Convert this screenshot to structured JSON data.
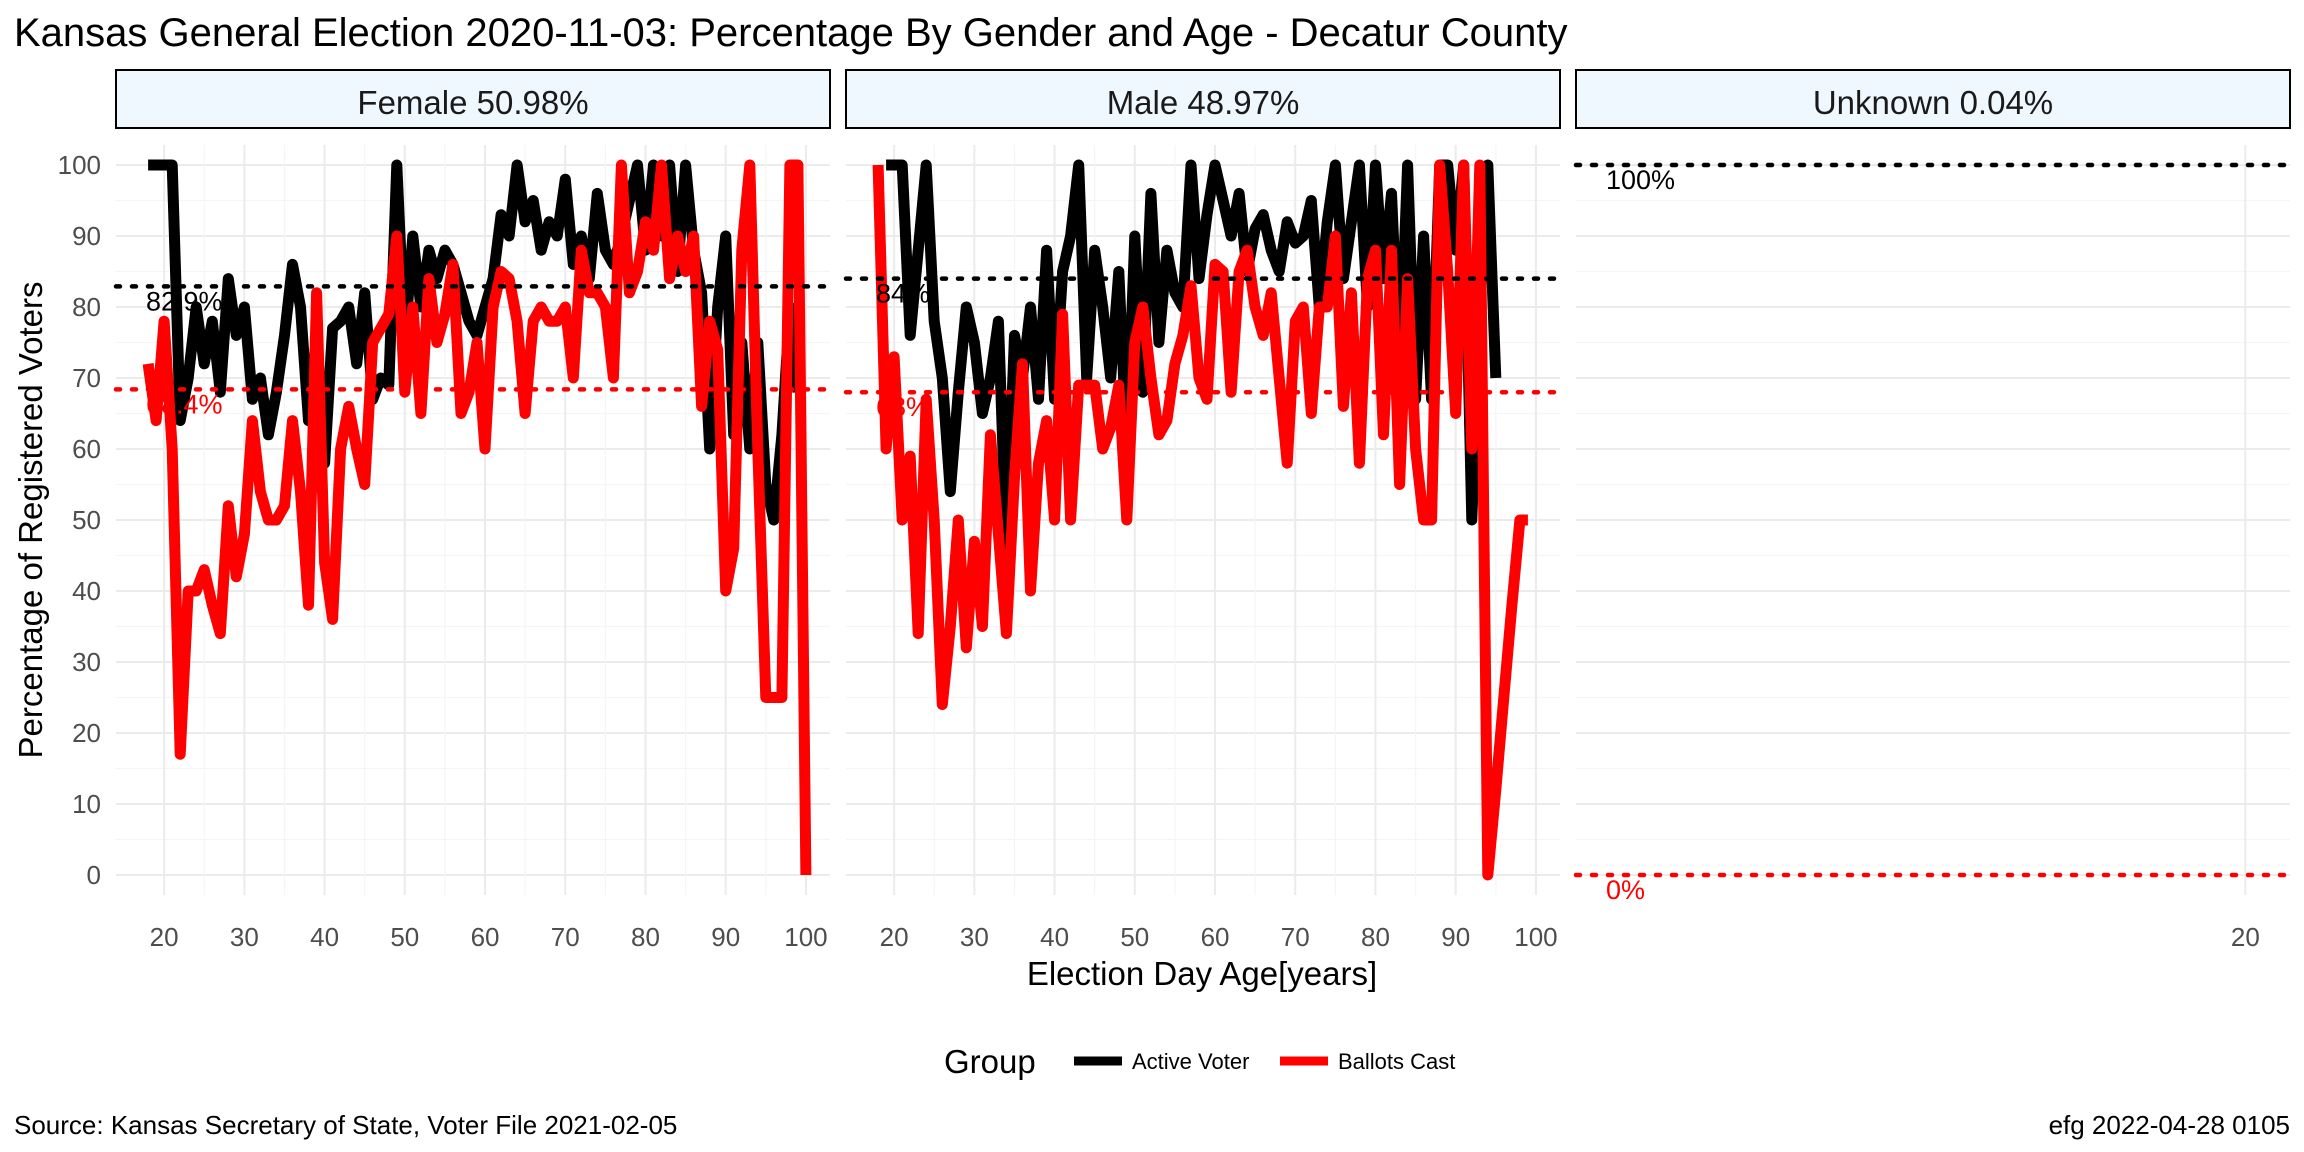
{
  "chart_data": {
    "type": "line",
    "title": "Kansas General Election 2020-11-03:  Percentage By Gender and Age - Decatur County",
    "xlabel": "Election Day Age[years]",
    "ylabel": "Percentage of Registered Voters",
    "caption_left": "Source:  Kansas Secretary of State, Voter File  2021-02-05",
    "caption_right": "efg 2022-04-28 0105",
    "legend": {
      "title": "Group",
      "position": "bottom",
      "entries": [
        {
          "label": "Active Voter",
          "color": "#000000"
        },
        {
          "label": "Ballots Cast",
          "color": "#ff0000"
        }
      ]
    },
    "ylim": [
      0,
      100
    ],
    "y_ticks": [
      0,
      10,
      20,
      30,
      40,
      50,
      60,
      70,
      80,
      90,
      100
    ],
    "grid": true,
    "panels": [
      {
        "label": "Female 50.98%",
        "xlim": [
          14,
          103
        ],
        "x_ticks": [
          20,
          30,
          40,
          50,
          60,
          70,
          80,
          90,
          100
        ],
        "ref_lines": [
          {
            "value": 82.9,
            "label": "82.9%",
            "color": "#000000"
          },
          {
            "value": 68.4,
            "label": "68.4%",
            "color": "#ff0000"
          }
        ],
        "series": [
          {
            "name": "Active Voter",
            "color": "#000000",
            "x": [
              18,
              19,
              20,
              21,
              22,
              23,
              24,
              25,
              26,
              27,
              28,
              29,
              30,
              31,
              32,
              33,
              34,
              35,
              36,
              37,
              38,
              39,
              40,
              41,
              42,
              43,
              44,
              45,
              46,
              47,
              48,
              49,
              50,
              51,
              52,
              53,
              54,
              55,
              56,
              57,
              58,
              59,
              60,
              61,
              62,
              63,
              64,
              65,
              66,
              67,
              68,
              69,
              70,
              71,
              72,
              73,
              74,
              75,
              76,
              77,
              78,
              79,
              80,
              81,
              82,
              83,
              84,
              85,
              86,
              87,
              88,
              89,
              90,
              91,
              92,
              93,
              94,
              95,
              96,
              97,
              98,
              99
            ],
            "y": [
              100,
              100,
              100,
              100,
              64,
              70,
              80,
              72,
              78,
              68,
              84,
              76,
              80,
              67,
              70,
              62,
              68,
              76,
              86,
              80,
              64,
              76,
              58,
              77,
              78,
              80,
              72,
              82,
              67,
              70,
              69,
              100,
              75,
              90,
              80,
              88,
              84,
              88,
              86,
              82,
              78,
              76,
              80,
              84,
              93,
              90,
              100,
              92,
              95,
              88,
              92,
              90,
              98,
              86,
              90,
              84,
              96,
              88,
              86,
              90,
              95,
              100,
              88,
              100,
              90,
              100,
              85,
              100,
              88,
              82,
              60,
              80,
              90,
              62,
              75,
              60,
              75,
              55,
              50,
              62,
              80,
              68
            ]
          },
          {
            "name": "Ballots Cast",
            "color": "#ff0000",
            "x": [
              18,
              19,
              20,
              21,
              22,
              23,
              24,
              25,
              26,
              27,
              28,
              29,
              30,
              31,
              32,
              33,
              34,
              35,
              36,
              37,
              38,
              39,
              40,
              41,
              42,
              43,
              44,
              45,
              46,
              47,
              48,
              49,
              50,
              51,
              52,
              53,
              54,
              55,
              56,
              57,
              58,
              59,
              60,
              61,
              62,
              63,
              64,
              65,
              66,
              67,
              68,
              69,
              70,
              71,
              72,
              73,
              74,
              75,
              76,
              77,
              78,
              79,
              80,
              81,
              82,
              83,
              84,
              85,
              86,
              87,
              88,
              89,
              90,
              91,
              92,
              93,
              94,
              95,
              96,
              97,
              98,
              99,
              100
            ],
            "y": [
              72,
              64,
              78,
              60,
              17,
              40,
              40,
              43,
              38,
              34,
              52,
              42,
              48,
              64,
              54,
              50,
              50,
              52,
              64,
              54,
              38,
              82,
              44,
              36,
              60,
              66,
              60,
              55,
              75,
              77,
              79,
              90,
              68,
              80,
              65,
              84,
              75,
              79,
              86,
              65,
              68,
              75,
              60,
              80,
              85,
              84,
              78,
              65,
              78,
              80,
              78,
              78,
              80,
              70,
              88,
              82,
              82,
              80,
              70,
              100,
              82,
              85,
              92,
              88,
              100,
              84,
              90,
              85,
              90,
              66,
              78,
              74,
              40,
              46,
              88,
              100,
              60,
              25,
              25,
              25,
              100,
              100,
              0
            ]
          }
        ]
      },
      {
        "label": "Male 48.97%",
        "xlim": [
          14,
          103
        ],
        "x_ticks": [
          20,
          30,
          40,
          50,
          60,
          70,
          80,
          90,
          100
        ],
        "ref_lines": [
          {
            "value": 84,
            "label": "84%",
            "color": "#000000"
          },
          {
            "value": 68,
            "label": "68%",
            "color": "#ff0000"
          }
        ],
        "series": [
          {
            "name": "Active Voter",
            "color": "#000000",
            "x": [
              19,
              20,
              21,
              22,
              23,
              24,
              25,
              26,
              27,
              28,
              29,
              30,
              31,
              32,
              33,
              34,
              35,
              36,
              37,
              38,
              39,
              40,
              41,
              42,
              43,
              44,
              45,
              46,
              47,
              48,
              49,
              50,
              51,
              52,
              53,
              54,
              55,
              56,
              57,
              58,
              59,
              60,
              61,
              62,
              63,
              64,
              65,
              66,
              67,
              68,
              69,
              70,
              71,
              72,
              73,
              74,
              75,
              76,
              77,
              78,
              79,
              80,
              81,
              82,
              83,
              84,
              85,
              86,
              87,
              88,
              89,
              90,
              91,
              92,
              93,
              94,
              95
            ],
            "y": [
              100,
              100,
              100,
              76,
              88,
              100,
              78,
              70,
              54,
              68,
              80,
              75,
              65,
              70,
              78,
              46,
              76,
              70,
              80,
              67,
              88,
              67,
              85,
              90,
              100,
              70,
              88,
              80,
              70,
              85,
              60,
              90,
              68,
              96,
              75,
              88,
              82,
              80,
              100,
              84,
              93,
              100,
              95,
              90,
              96,
              85,
              91,
              93,
              88,
              85,
              92,
              89,
              90,
              95,
              80,
              92,
              100,
              84,
              92,
              100,
              80,
              100,
              84,
              96,
              70,
              100,
              67,
              90,
              67,
              100,
              100,
              88,
              100,
              50,
              80,
              100,
              70
            ]
          },
          {
            "name": "Ballots Cast",
            "color": "#ff0000",
            "x": [
              18,
              19,
              20,
              21,
              22,
              23,
              24,
              25,
              26,
              27,
              28,
              29,
              30,
              31,
              32,
              33,
              34,
              35,
              36,
              37,
              38,
              39,
              40,
              41,
              42,
              43,
              44,
              45,
              46,
              47,
              48,
              49,
              50,
              51,
              52,
              53,
              54,
              55,
              56,
              57,
              58,
              59,
              60,
              61,
              62,
              63,
              64,
              65,
              66,
              67,
              68,
              69,
              70,
              71,
              72,
              73,
              74,
              75,
              76,
              77,
              78,
              79,
              80,
              81,
              82,
              83,
              84,
              85,
              86,
              87,
              88,
              89,
              90,
              91,
              92,
              93,
              94,
              95,
              96,
              97,
              98,
              99
            ],
            "y": [
              100,
              60,
              73,
              50,
              59,
              34,
              67,
              50,
              24,
              35,
              50,
              32,
              47,
              35,
              62,
              48,
              34,
              56,
              72,
              40,
              58,
              64,
              50,
              79,
              50,
              69,
              69,
              69,
              60,
              63,
              69,
              50,
              75,
              80,
              70,
              62,
              64,
              72,
              76,
              83,
              70,
              67,
              86,
              85,
              68,
              85,
              88,
              80,
              76,
              82,
              70,
              58,
              78,
              80,
              65,
              80,
              80,
              90,
              66,
              82,
              58,
              84,
              88,
              62,
              88,
              55,
              84,
              60,
              50,
              50,
              100,
              85,
              65,
              100,
              60,
              100,
              0,
              12,
              25,
              38,
              50,
              50
            ]
          }
        ]
      },
      {
        "label": "Unknown 0.04%",
        "xlim": [
          14,
          20.4
        ],
        "x_ticks": [
          20
        ],
        "ref_lines": [
          {
            "value": 100,
            "label": "100%",
            "color": "#000000"
          },
          {
            "value": 0,
            "label": "0%",
            "color": "#ff0000"
          }
        ],
        "series": []
      }
    ]
  }
}
